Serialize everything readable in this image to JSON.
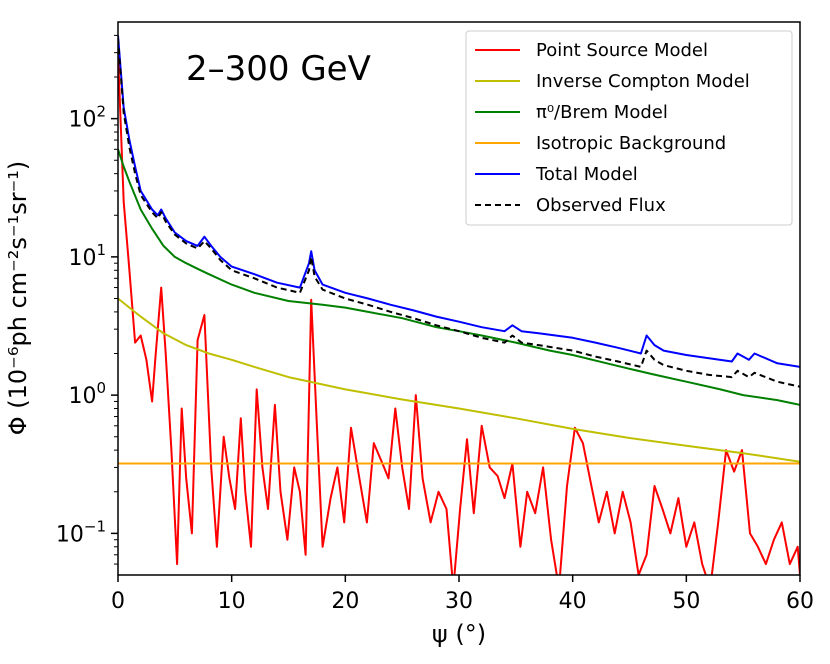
{
  "chart_data": {
    "type": "line",
    "title": "",
    "annotation": "2–300 GeV",
    "xlabel": "ψ (°)",
    "ylabel": "Φ (10⁻⁶ph cm⁻²s⁻¹sr⁻¹)",
    "xlim": [
      0,
      60
    ],
    "ylim": [
      0.05,
      500
    ],
    "yscale": "log",
    "grid": false,
    "legend_position": "top-right",
    "x_ticks": [
      {
        "value": 0,
        "label": "0"
      },
      {
        "value": 10,
        "label": "10"
      },
      {
        "value": 20,
        "label": "20"
      },
      {
        "value": 30,
        "label": "30"
      },
      {
        "value": 40,
        "label": "40"
      },
      {
        "value": 50,
        "label": "50"
      },
      {
        "value": 60,
        "label": "60"
      }
    ],
    "y_ticks": [
      {
        "value": 0.1,
        "base": "10",
        "exp": "−1"
      },
      {
        "value": 1,
        "base": "10",
        "exp": "0"
      },
      {
        "value": 10,
        "base": "10",
        "exp": "1"
      },
      {
        "value": 100,
        "base": "10",
        "exp": "2"
      }
    ],
    "series": [
      {
        "name": "Point Source Model",
        "color": "#ff0000",
        "dash": "",
        "x": [
          0,
          0.5,
          1,
          1.5,
          2,
          2.5,
          3,
          3.3,
          3.8,
          4.2,
          4.7,
          5.2,
          5.6,
          6,
          6.5,
          7,
          7.6,
          8.2,
          8.7,
          9.3,
          9.8,
          10.3,
          10.8,
          11.2,
          11.7,
          12.2,
          12.7,
          13.2,
          13.8,
          14.3,
          14.9,
          15.5,
          16,
          16.5,
          17,
          17.5,
          18,
          18.7,
          19.3,
          19.9,
          20.5,
          21.2,
          21.9,
          22.5,
          23.2,
          23.8,
          24.4,
          25,
          25.6,
          26.2,
          26.8,
          27.5,
          28.2,
          28.9,
          29.5,
          30.1,
          30.7,
          31.3,
          32,
          32.7,
          33.4,
          34,
          34.7,
          35.4,
          36,
          36.7,
          37.4,
          38.1,
          38.8,
          39.5,
          40.2,
          40.9,
          41.6,
          42.3,
          43,
          43.7,
          44.4,
          45.1,
          45.8,
          46.5,
          47.2,
          47.9,
          48.6,
          49.3,
          50,
          50.7,
          51.4,
          52.1,
          52.8,
          53.5,
          54.2,
          54.9,
          55.6,
          56.3,
          57,
          57.7,
          58.4,
          59.1,
          59.8,
          60
        ],
        "values": [
          300,
          25,
          8,
          2.4,
          2.7,
          1.8,
          0.9,
          1.9,
          6.0,
          2.0,
          0.4,
          0.06,
          0.8,
          0.25,
          0.1,
          2.5,
          3.8,
          0.3,
          0.08,
          0.5,
          0.25,
          0.15,
          0.68,
          0.2,
          0.08,
          1.1,
          0.3,
          0.15,
          0.85,
          0.2,
          0.09,
          0.3,
          0.2,
          0.07,
          4.9,
          0.6,
          0.08,
          0.18,
          0.3,
          0.12,
          0.58,
          0.26,
          0.12,
          0.45,
          0.33,
          0.25,
          0.8,
          0.3,
          0.15,
          1.0,
          0.25,
          0.12,
          0.2,
          0.15,
          0.04,
          0.15,
          0.48,
          0.14,
          0.6,
          0.3,
          0.26,
          0.18,
          0.32,
          0.08,
          0.2,
          0.14,
          0.3,
          0.09,
          0.04,
          0.22,
          0.58,
          0.45,
          0.23,
          0.12,
          0.2,
          0.1,
          0.2,
          0.12,
          0.05,
          0.07,
          0.22,
          0.15,
          0.1,
          0.18,
          0.08,
          0.12,
          0.06,
          0.04,
          0.12,
          0.4,
          0.28,
          0.4,
          0.1,
          0.08,
          0.06,
          0.09,
          0.12,
          0.06,
          0.08,
          0.05
        ]
      },
      {
        "name": "Inverse Compton Model",
        "color": "#bfbf00",
        "dash": "",
        "x": [
          0,
          1,
          2,
          4,
          6,
          8,
          10,
          12,
          15,
          20,
          25,
          30,
          35,
          40,
          45,
          50,
          55,
          60
        ],
        "values": [
          5.0,
          4.3,
          3.7,
          2.8,
          2.3,
          2.0,
          1.8,
          1.6,
          1.35,
          1.1,
          0.93,
          0.8,
          0.68,
          0.57,
          0.49,
          0.43,
          0.38,
          0.33
        ]
      },
      {
        "name": "π⁰/Brem Model",
        "color": "#008000",
        "dash": "",
        "x": [
          0,
          0.5,
          1,
          2,
          3,
          4,
          5,
          6,
          7,
          8,
          10,
          12,
          15,
          17,
          18,
          20,
          22,
          25,
          28,
          30,
          32,
          35,
          38,
          40,
          43,
          45,
          47,
          50,
          53,
          55,
          58,
          60
        ],
        "values": [
          60,
          45,
          35,
          22,
          16,
          12,
          10,
          9,
          8.2,
          7.5,
          6.3,
          5.5,
          4.8,
          4.6,
          4.5,
          4.3,
          4.0,
          3.6,
          3.1,
          2.9,
          2.7,
          2.4,
          2.1,
          1.95,
          1.7,
          1.55,
          1.42,
          1.25,
          1.1,
          1.0,
          0.92,
          0.85
        ]
      },
      {
        "name": "Isotropic Background",
        "color": "#ffa500",
        "dash": "",
        "x": [
          0,
          60
        ],
        "values": [
          0.32,
          0.32
        ]
      },
      {
        "name": "Total Model",
        "color": "#0000ff",
        "dash": "",
        "x": [
          0,
          0.5,
          1,
          1.5,
          2,
          3,
          3.5,
          3.8,
          4.2,
          5,
          6,
          7,
          7.6,
          8.2,
          9,
          10,
          12,
          14,
          16,
          16.8,
          17,
          17.3,
          18,
          20,
          22,
          24,
          26,
          28,
          30,
          32,
          34,
          34.7,
          35.5,
          37,
          40,
          42,
          44,
          46,
          46.5,
          47.2,
          48,
          50,
          52,
          54,
          54.5,
          55.5,
          56,
          58,
          60
        ],
        "values": [
          400,
          120,
          70,
          45,
          30,
          22,
          20,
          22,
          19,
          15,
          13,
          12,
          14,
          12,
          10,
          8.5,
          7.5,
          6.5,
          6.0,
          9.0,
          11,
          8.0,
          6.3,
          5.5,
          5.0,
          4.5,
          4.1,
          3.7,
          3.4,
          3.1,
          2.9,
          3.2,
          2.9,
          2.8,
          2.6,
          2.4,
          2.2,
          2.0,
          2.7,
          2.3,
          2.1,
          1.95,
          1.85,
          1.75,
          2.0,
          1.8,
          2.0,
          1.7,
          1.6
        ]
      },
      {
        "name": "Observed Flux",
        "color": "#000000",
        "dash": "6,4",
        "x": [
          0,
          0.5,
          1,
          1.5,
          2,
          3,
          3.5,
          3.8,
          4.2,
          5,
          6,
          7,
          7.6,
          8.2,
          9,
          10,
          12,
          14,
          16,
          16.8,
          17,
          17.3,
          18,
          20,
          22,
          24,
          26,
          28,
          30,
          32,
          34,
          34.7,
          35.5,
          37,
          40,
          42,
          44,
          46,
          46.5,
          47.2,
          48,
          50,
          52,
          54,
          54.5,
          55.5,
          56,
          58,
          60
        ],
        "values": [
          380,
          110,
          62,
          40,
          28,
          21,
          19,
          21,
          18,
          14.5,
          12.5,
          11.5,
          13,
          11.5,
          9.5,
          8.0,
          7.0,
          6.0,
          5.5,
          8.0,
          10,
          7.2,
          5.8,
          5.0,
          4.5,
          4.0,
          3.6,
          3.2,
          2.9,
          2.6,
          2.4,
          2.7,
          2.4,
          2.3,
          2.1,
          1.9,
          1.75,
          1.6,
          2.1,
          1.8,
          1.65,
          1.5,
          1.4,
          1.35,
          1.5,
          1.35,
          1.45,
          1.25,
          1.15
        ]
      }
    ]
  }
}
